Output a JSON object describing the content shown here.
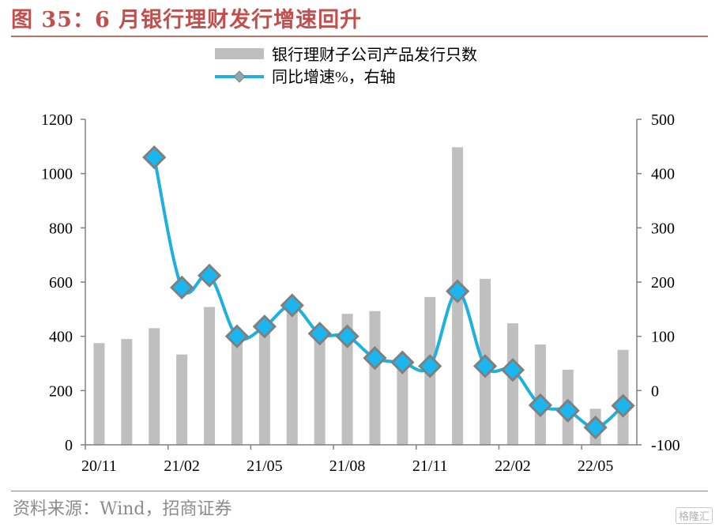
{
  "title": "图 35：6 月银行理财发行增速回升",
  "source": "资料来源：Wind，招商证券",
  "watermark": "格隆汇",
  "colors": {
    "bar": "#bfbfbf",
    "line": "#1fb0e0",
    "marker_fill": "#1ab6ef",
    "marker_edge": "#7f7f7f",
    "title": "#c0504d"
  },
  "chart_data": {
    "type": "bar",
    "categories": [
      "20/11",
      "20/12",
      "21/01",
      "21/02",
      "21/03",
      "21/04",
      "21/05",
      "21/06",
      "21/07",
      "21/08",
      "21/09",
      "21/10",
      "21/11",
      "21/12",
      "22/01",
      "22/02",
      "22/03",
      "22/04",
      "22/05",
      "22/06"
    ],
    "x_tick_labels": [
      "20/11",
      "21/02",
      "21/05",
      "21/08",
      "21/11",
      "22/02",
      "22/05"
    ],
    "series": [
      {
        "name": "银行理财子公司产品发行只数",
        "type": "bar",
        "axis": "left",
        "values": [
          375,
          390,
          430,
          333,
          508,
          410,
          450,
          528,
          418,
          483,
          493,
          313,
          545,
          1097,
          612,
          448,
          370,
          277,
          133,
          350
        ]
      },
      {
        "name": "同比增速%，右轴",
        "type": "line",
        "axis": "right",
        "values": [
          null,
          null,
          430,
          190,
          212,
          100,
          118,
          157,
          105,
          100,
          60,
          52,
          45,
          183,
          45,
          38,
          -27,
          -37,
          -68,
          -28
        ]
      }
    ],
    "y_left": {
      "ylim": [
        0,
        1200
      ],
      "ticks": [
        0,
        200,
        400,
        600,
        800,
        1000,
        1200
      ]
    },
    "y_right": {
      "ylim": [
        -100,
        500
      ],
      "ticks": [
        -100,
        0,
        100,
        200,
        300,
        400,
        500
      ]
    },
    "legend_position": "top-center",
    "grid": false
  }
}
